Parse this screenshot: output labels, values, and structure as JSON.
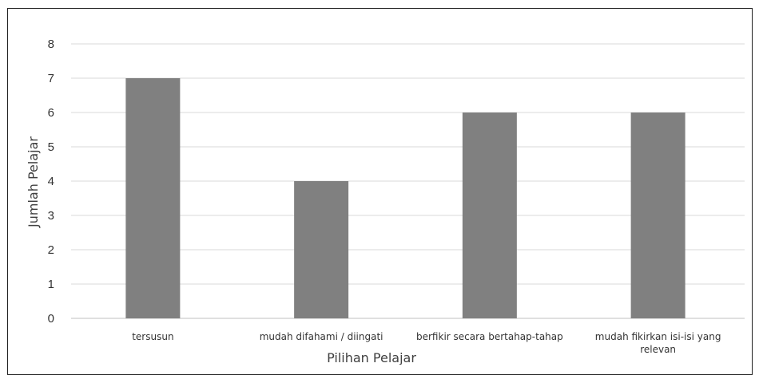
{
  "chart_data": {
    "type": "bar",
    "categories": [
      [
        "tersusun"
      ],
      [
        "mudah difahami / diingati"
      ],
      [
        "berfikir secara bertahap-tahap"
      ],
      [
        "mudah fikirkan isi-isi yang",
        "relevan"
      ]
    ],
    "values": [
      7,
      4,
      6,
      6
    ],
    "xlabel": "Pilihan Pelajar",
    "ylabel": "Jumlah Pelajar",
    "ylim": [
      0,
      8
    ],
    "yticks": [
      "0",
      "1",
      "2",
      "3",
      "4",
      "5",
      "6",
      "7",
      "8"
    ],
    "grid": true,
    "bar_color": "#808080",
    "grid_color": "#d9d9d9",
    "axis_color": "#bfbfbf"
  }
}
